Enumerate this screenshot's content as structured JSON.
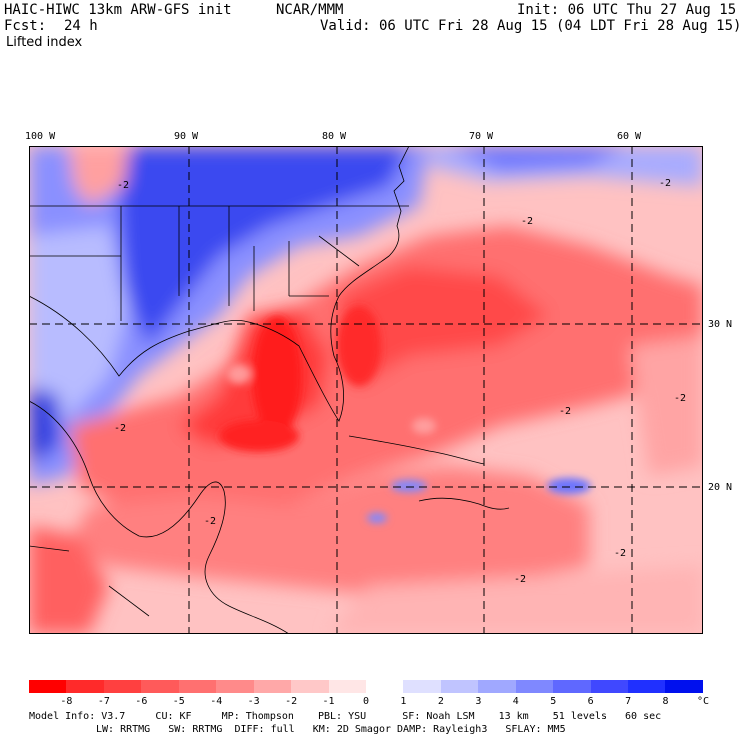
{
  "header": {
    "model": "HAIC-HIWC 13km ARW-GFS init",
    "org": "NCAR/MMM",
    "fcst_label": "Fcst:",
    "fcst_value": "24 h",
    "init": "Init: 06 UTC Thu 27 Aug 15",
    "valid": "Valid: 06 UTC Fri 28 Aug 15 (04 LDT Fri 28 Aug 15)",
    "field": "Lifted index"
  },
  "map": {
    "lon_labels": [
      "100 W",
      "90 W",
      "80 W",
      "70 W",
      "60 W"
    ],
    "lat_labels": [
      "30 N",
      "20 N"
    ],
    "contour_label": "-2"
  },
  "colorbar": {
    "ticks": [
      "-8",
      "-7",
      "-6",
      "-5",
      "-4",
      "-3",
      "-2",
      "-1",
      "0",
      "1",
      "2",
      "3",
      "4",
      "5",
      "6",
      "7",
      "8"
    ],
    "unit": "°C",
    "colors": [
      "#ff0000",
      "#ff2a2a",
      "#ff4040",
      "#ff5a5a",
      "#ff7070",
      "#ff8a8a",
      "#ffa8a8",
      "#ffc8c8",
      "#ffe6e6",
      "#ffffff",
      "#dfe0ff",
      "#c0c4ff",
      "#a0a8ff",
      "#7f88ff",
      "#5f68ff",
      "#4048ff",
      "#2030ff",
      "#0010ee"
    ]
  },
  "model_info": {
    "line1": "Model Info: V3.7     CU: KF     MP: Thompson    PBL: YSU      SF: Noah LSM    13 km    51 levels   60 sec",
    "line2": "LW: RRTMG   SW: RRTMG  DIFF: full   KM: 2D Smagor DAMP: Rayleigh3   SFLAY: MM5"
  }
}
